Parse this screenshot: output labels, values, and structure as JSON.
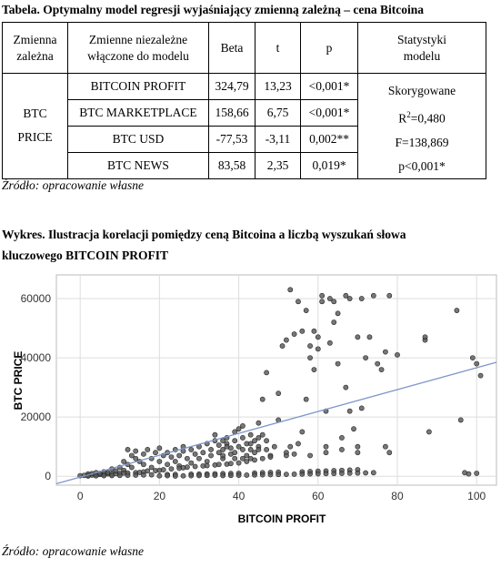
{
  "table_caption": "Tabela. Optymalny model regresji wyjaśniający zmienną zależną – cena Bitcoina",
  "table": {
    "headers": {
      "dependent": [
        "Zmienna",
        "zależna"
      ],
      "independent": [
        "Zmienne niezależne",
        "włączone do modelu"
      ],
      "beta": "Beta",
      "t": "t",
      "p": "p",
      "stats": [
        "Statystyki",
        "modelu"
      ]
    },
    "dependent_variable": [
      "BTC",
      "PRICE"
    ],
    "rows": [
      {
        "variable": "BITCOIN PROFIT",
        "beta": "324,79",
        "t": "13,23",
        "p": "<0,001*"
      },
      {
        "variable": "BTC MARKETPLACE",
        "beta": "158,66",
        "t": "6,75",
        "p": "<0,001*"
      },
      {
        "variable": "BTC USD",
        "beta": "-77,53",
        "t": "-3,11",
        "p": "0,002**"
      },
      {
        "variable": "BTC NEWS",
        "beta": "83,58",
        "t": "2,35",
        "p": "0,019*"
      }
    ],
    "model_stats": {
      "line1": "Skorygowane",
      "r2_prefix": "R",
      "r2_sup": "2",
      "r2_value": "=0,480",
      "f": "F=138,869",
      "p": "p<0,001*"
    }
  },
  "source_1": "Źródło: opracowanie własne",
  "chart_caption": [
    "Wykres. Ilustracja korelacji pomiędzy ceną Bitcoina a liczbą wyszukań słowa",
    "kluczowego BITCOIN PROFIT"
  ],
  "source_2": "Źródło: opracowanie własne",
  "colors": {
    "point": "#555555",
    "regression_line": "#7f97c8",
    "grid": "#dddddd"
  },
  "chart_data": {
    "type": "scatter",
    "xlabel": "BITCOIN PROFIT",
    "ylabel": "BTC PRICE",
    "xlim": [
      -6,
      105
    ],
    "ylim": [
      -3000,
      68000
    ],
    "xticks": [
      0,
      20,
      40,
      60,
      80,
      100
    ],
    "yticks": [
      0,
      20000,
      40000,
      60000
    ],
    "grid": true,
    "regression_line": {
      "x": [
        -6,
        105
      ],
      "y": [
        -2500,
        38500
      ]
    },
    "points": [
      [
        0,
        200
      ],
      [
        1,
        300
      ],
      [
        2,
        300
      ],
      [
        2,
        800
      ],
      [
        3,
        400
      ],
      [
        3,
        900
      ],
      [
        4,
        500
      ],
      [
        4,
        1200
      ],
      [
        5,
        600
      ],
      [
        5,
        1000
      ],
      [
        6,
        700
      ],
      [
        6,
        1500
      ],
      [
        7,
        800
      ],
      [
        7,
        1200
      ],
      [
        8,
        700
      ],
      [
        8,
        2500
      ],
      [
        9,
        900
      ],
      [
        9,
        1800
      ],
      [
        10,
        1000
      ],
      [
        10,
        3000
      ],
      [
        11,
        2000
      ],
      [
        11,
        5000
      ],
      [
        12,
        4000
      ],
      [
        12,
        9000
      ],
      [
        13,
        3000
      ],
      [
        13,
        7000
      ],
      [
        14,
        6000
      ],
      [
        14,
        8500
      ],
      [
        15,
        5000
      ],
      [
        16,
        4000
      ],
      [
        16,
        7500
      ],
      [
        17,
        9000
      ],
      [
        18,
        6000
      ],
      [
        18,
        3000
      ],
      [
        19,
        8000
      ],
      [
        20,
        5000
      ],
      [
        20,
        9500
      ],
      [
        21,
        7000
      ],
      [
        22,
        4000
      ],
      [
        22,
        8000
      ],
      [
        23,
        6500
      ],
      [
        24,
        9000
      ],
      [
        24,
        5000
      ],
      [
        25,
        7000
      ],
      [
        25,
        3500
      ],
      [
        26,
        8500
      ],
      [
        26,
        10000
      ],
      [
        27,
        6000
      ],
      [
        28,
        9000
      ],
      [
        28,
        4500
      ],
      [
        29,
        7500
      ],
      [
        30,
        10000
      ],
      [
        30,
        6000
      ],
      [
        31,
        8000
      ],
      [
        32,
        11000
      ],
      [
        32,
        5000
      ],
      [
        33,
        9000
      ],
      [
        33,
        7000
      ],
      [
        34,
        12000
      ],
      [
        34,
        14000
      ],
      [
        35,
        8000
      ],
      [
        35,
        10500
      ],
      [
        36,
        6000
      ],
      [
        36,
        9000
      ],
      [
        37,
        11000
      ],
      [
        37,
        13000
      ],
      [
        38,
        7500
      ],
      [
        38,
        9500
      ],
      [
        39,
        8000
      ],
      [
        39,
        12000
      ],
      [
        40,
        10000
      ],
      [
        40,
        16000
      ],
      [
        41,
        9000
      ],
      [
        41,
        13000
      ],
      [
        42,
        7000
      ],
      [
        42,
        11000
      ],
      [
        43,
        6000
      ],
      [
        43,
        9000
      ],
      [
        44,
        12000
      ],
      [
        44,
        8000
      ],
      [
        45,
        10000
      ],
      [
        45,
        18000
      ],
      [
        46,
        14000
      ],
      [
        46,
        26000
      ],
      [
        47,
        9000
      ],
      [
        47,
        35000
      ],
      [
        48,
        7000
      ],
      [
        49,
        10000
      ],
      [
        50,
        28000
      ],
      [
        50,
        19000
      ],
      [
        51,
        44000
      ],
      [
        52,
        46000
      ],
      [
        52,
        8000
      ],
      [
        53,
        63000
      ],
      [
        53,
        10000
      ],
      [
        54,
        48000
      ],
      [
        55,
        11000
      ],
      [
        55,
        59000
      ],
      [
        56,
        49000
      ],
      [
        56,
        15000
      ],
      [
        57,
        56000
      ],
      [
        57,
        26000
      ],
      [
        58,
        40000
      ],
      [
        58,
        44000
      ],
      [
        59,
        36000
      ],
      [
        59,
        49000
      ],
      [
        60,
        43000
      ],
      [
        60,
        47000
      ],
      [
        61,
        61000
      ],
      [
        61,
        59000
      ],
      [
        62,
        22000
      ],
      [
        62,
        10000
      ],
      [
        63,
        60000
      ],
      [
        63,
        45000
      ],
      [
        64,
        59000
      ],
      [
        64,
        52000
      ],
      [
        65,
        55000
      ],
      [
        65,
        38000
      ],
      [
        66,
        9000
      ],
      [
        66,
        13000
      ],
      [
        67,
        61000
      ],
      [
        67,
        30000
      ],
      [
        68,
        60000
      ],
      [
        68,
        22000
      ],
      [
        69,
        16000
      ],
      [
        70,
        47000
      ],
      [
        70,
        10000
      ],
      [
        71,
        60000
      ],
      [
        71,
        23000
      ],
      [
        72,
        40000
      ],
      [
        73,
        47000
      ],
      [
        74,
        61000
      ],
      [
        75,
        38000
      ],
      [
        76,
        36000
      ],
      [
        77,
        42000
      ],
      [
        77,
        10000
      ],
      [
        78,
        61000
      ],
      [
        78,
        8000
      ],
      [
        80,
        41000
      ],
      [
        87,
        46000
      ],
      [
        87,
        47000
      ],
      [
        88,
        15000
      ],
      [
        95,
        56000
      ],
      [
        96,
        19000
      ],
      [
        97,
        1200
      ],
      [
        98,
        800
      ],
      [
        99,
        40000
      ],
      [
        100,
        38000
      ],
      [
        100,
        1000
      ],
      [
        101,
        34000
      ],
      [
        11,
        1100
      ],
      [
        12,
        1100
      ],
      [
        14,
        1200
      ],
      [
        15,
        1300
      ],
      [
        16,
        1500
      ],
      [
        17,
        1800
      ],
      [
        19,
        1900
      ],
      [
        20,
        2000
      ],
      [
        21,
        2200
      ],
      [
        23,
        2500
      ],
      [
        25,
        2700
      ],
      [
        26,
        2900
      ],
      [
        27,
        3100
      ],
      [
        29,
        3300
      ],
      [
        31,
        3500
      ],
      [
        32,
        3600
      ],
      [
        34,
        3800
      ],
      [
        35,
        4000
      ],
      [
        37,
        4100
      ],
      [
        38,
        4300
      ],
      [
        40,
        4500
      ],
      [
        42,
        5000
      ],
      [
        44,
        5500
      ],
      [
        46,
        6000
      ],
      [
        48,
        6500
      ],
      [
        52,
        7000
      ],
      [
        54,
        7500
      ],
      [
        58,
        7000
      ],
      [
        62,
        8000
      ],
      [
        70,
        8000
      ],
      [
        2,
        100
      ],
      [
        4,
        150
      ],
      [
        6,
        200
      ],
      [
        8,
        250
      ],
      [
        10,
        300
      ],
      [
        12,
        350
      ],
      [
        14,
        400
      ],
      [
        16,
        450
      ],
      [
        18,
        500
      ],
      [
        22,
        600
      ],
      [
        24,
        650
      ],
      [
        28,
        700
      ],
      [
        30,
        750
      ],
      [
        32,
        800
      ],
      [
        34,
        850
      ],
      [
        36,
        900
      ],
      [
        38,
        950
      ],
      [
        40,
        1000
      ],
      [
        44,
        1100
      ],
      [
        46,
        1200
      ],
      [
        48,
        1300
      ],
      [
        50,
        1400
      ],
      [
        56,
        1500
      ],
      [
        58,
        1600
      ],
      [
        60,
        1700
      ],
      [
        62,
        1800
      ],
      [
        64,
        1900
      ],
      [
        66,
        2000
      ],
      [
        68,
        2100
      ],
      [
        70,
        2200
      ],
      [
        20,
        150
      ],
      [
        22,
        200
      ],
      [
        24,
        100
      ],
      [
        26,
        150
      ],
      [
        28,
        200
      ],
      [
        30,
        250
      ],
      [
        32,
        300
      ],
      [
        34,
        350
      ],
      [
        36,
        250
      ],
      [
        38,
        300
      ],
      [
        40,
        350
      ],
      [
        42,
        400
      ],
      [
        44,
        450
      ],
      [
        46,
        500
      ],
      [
        48,
        550
      ],
      [
        50,
        600
      ],
      [
        52,
        650
      ],
      [
        54,
        700
      ],
      [
        56,
        750
      ],
      [
        58,
        800
      ],
      [
        60,
        850
      ],
      [
        62,
        900
      ],
      [
        64,
        950
      ],
      [
        66,
        1000
      ],
      [
        68,
        1050
      ],
      [
        70,
        1100
      ],
      [
        72,
        1150
      ],
      [
        74,
        1200
      ],
      [
        36,
        7000
      ],
      [
        36,
        12000
      ],
      [
        39,
        15000
      ],
      [
        41,
        17000
      ],
      [
        43,
        14000
      ],
      [
        45,
        13000
      ],
      [
        47,
        12000
      ],
      [
        37,
        10000
      ],
      [
        39,
        6000
      ],
      [
        41,
        6000
      ],
      [
        43,
        11000
      ],
      [
        45,
        9000
      ]
    ]
  }
}
